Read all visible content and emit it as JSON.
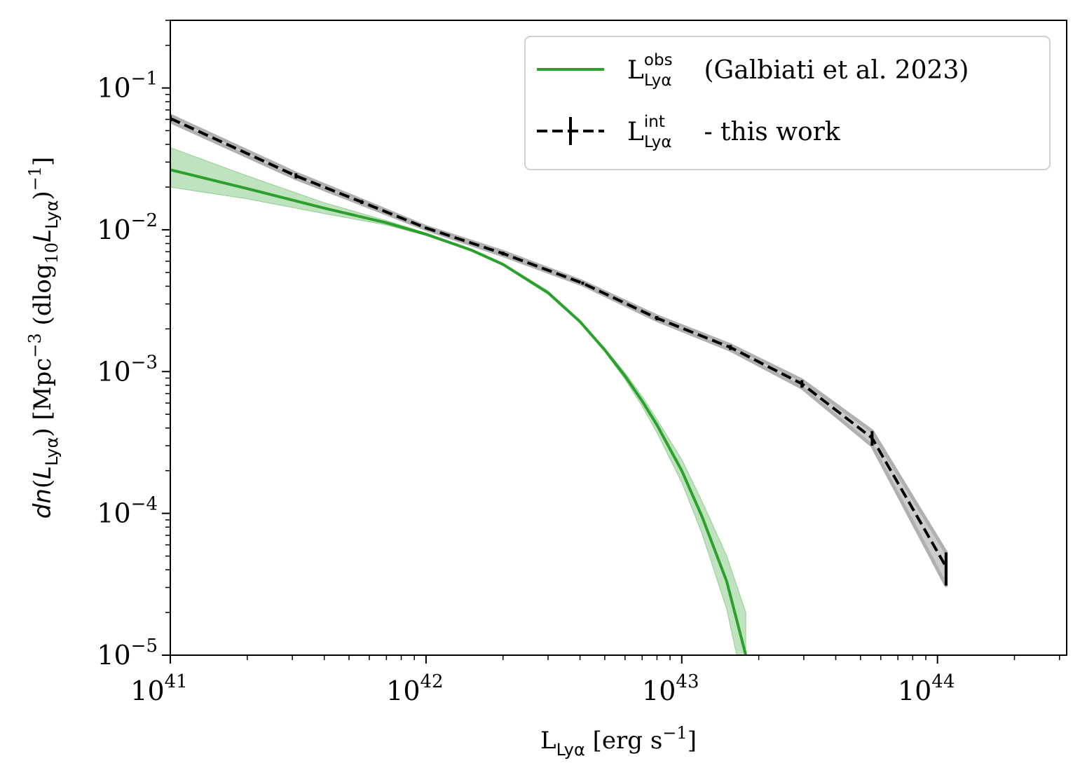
{
  "chart_data": {
    "type": "line",
    "xscale": "log",
    "yscale": "log",
    "xlim": [
      1e+41,
      3.2e+44
    ],
    "ylim": [
      1e-05,
      0.3
    ],
    "x_ticks": [
      {
        "value": 1e+41,
        "base": "10",
        "exp": "41"
      },
      {
        "value": 1e+42,
        "base": "10",
        "exp": "42"
      },
      {
        "value": 1e+43,
        "base": "10",
        "exp": "43"
      },
      {
        "value": 1e+44,
        "base": "10",
        "exp": "44"
      }
    ],
    "y_ticks": [
      {
        "value": 1e-05,
        "base": "10",
        "exp": "−5"
      },
      {
        "value": 0.0001,
        "base": "10",
        "exp": "−4"
      },
      {
        "value": 0.001,
        "base": "10",
        "exp": "−3"
      },
      {
        "value": 0.01,
        "base": "10",
        "exp": "−2"
      },
      {
        "value": 0.1,
        "base": "10",
        "exp": "−1"
      }
    ],
    "xlabel": {
      "main": "L",
      "sub": "Lyα",
      "rest": " [erg s",
      "sup": "−1",
      "end": "]"
    },
    "ylabel": {
      "p1": "dn",
      "p2": "(",
      "p3": "L",
      "p3sub": "Lyα",
      "p4": ") [Mpc",
      "p4sup": "−3",
      "p5": " (dlog",
      "p5sub": "10",
      "p6": "L",
      "p6sub": "Lyα",
      "p7": ")",
      "p7sup": "−1",
      "p8": "]"
    },
    "legend": {
      "position": "upper right",
      "entries": [
        {
          "main": "L",
          "sup": "obs",
          "sub": "Lyα",
          "rest": " (Galbiati et al. 2023)"
        },
        {
          "main": "L",
          "sup": "int",
          "sub": "Lyα",
          "rest": " - this work"
        }
      ]
    },
    "series": [
      {
        "style": "solid-with-band",
        "color": "#2ca02c",
        "band_color": "#2ca02c",
        "x": [
          1e+41,
          2e+41,
          4e+41,
          7e+41,
          1e+42,
          1.5e+42,
          2e+42,
          3e+42,
          4e+42,
          5e+42,
          6e+42,
          7e+42,
          8e+42,
          1e+43,
          1.2e+43,
          1.5e+43,
          1.78e+43
        ],
        "y": [
          0.0265,
          0.0195,
          0.0142,
          0.0112,
          0.0093,
          0.0072,
          0.0057,
          0.0036,
          0.00225,
          0.00142,
          0.00093,
          0.00062,
          0.00042,
          0.0002,
          9.5e-05,
          3.3e-05,
          1e-05
        ],
        "y_low": [
          0.02,
          0.0165,
          0.013,
          0.0108,
          0.0091,
          0.0071,
          0.0056,
          0.0035,
          0.0022,
          0.00138,
          0.00088,
          0.00057,
          0.00037,
          0.000165,
          7.2e-05,
          2.1e-05,
          5e-06
        ],
        "y_high": [
          0.038,
          0.024,
          0.0155,
          0.0116,
          0.0095,
          0.0073,
          0.0058,
          0.0037,
          0.0023,
          0.00146,
          0.00098,
          0.00067,
          0.00046,
          0.00024,
          0.000122,
          5e-05,
          2e-05
        ]
      },
      {
        "style": "dashed-errorbar",
        "color": "#000000",
        "band_color": "#b0b0b0",
        "x": [
          1e+41,
          3.1e+41,
          5.6e+41,
          1e+42,
          2e+42,
          4.1e+42,
          8e+42,
          1.55e+43,
          2.95e+43,
          5.55e+43,
          1.08e+44
        ],
        "y": [
          0.061,
          0.024,
          0.0157,
          0.0103,
          0.0068,
          0.0042,
          0.00238,
          0.00148,
          0.00082,
          0.00034,
          4.2e-05
        ],
        "y_err_low": [
          0.058,
          0.023,
          0.0152,
          0.0101,
          0.0066,
          0.0041,
          0.0023,
          0.00142,
          0.00077,
          0.0003,
          3.1e-05
        ],
        "y_err_high": [
          0.064,
          0.025,
          0.0162,
          0.0105,
          0.007,
          0.0043,
          0.00246,
          0.00154,
          0.00087,
          0.00038,
          5.3e-05
        ]
      }
    ],
    "grid": false
  }
}
